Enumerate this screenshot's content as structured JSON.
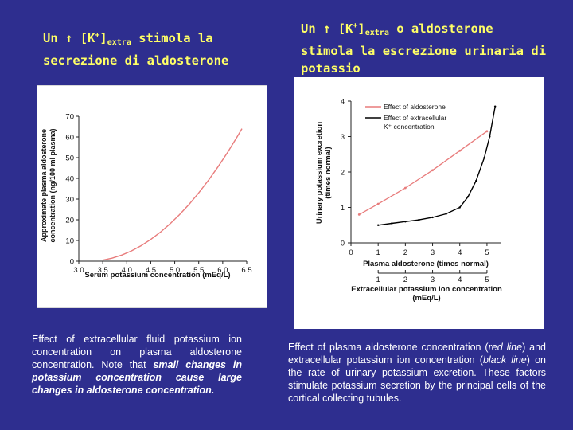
{
  "slide": {
    "left": {
      "title_line1": {
        "a": "Un",
        "arrow": "↑",
        "ion": "[K",
        "charge": "+",
        "close": "]",
        "sub": "extra",
        "verb": "stimola",
        "art": "la"
      },
      "title_line2": "secrezione di aldosterone",
      "caption": {
        "text1": "Effect of extracellular fluid potassium ion concentration on plasma aldosterone concentration. Note that ",
        "emph": "small changes in potassium concentration cause large changes in aldosterone concentration."
      }
    },
    "right": {
      "title_line1": {
        "a": "Un",
        "arrow": "↑",
        "ion": "[K",
        "charge": "+",
        "close": "]",
        "sub": "extra",
        "conj": "o",
        "noun": "aldosterone"
      },
      "title_line2": {
        "w1": "stimola",
        "w2": "la",
        "w3": "escrezione",
        "w4": "urinaria",
        "w5": "di"
      },
      "title_line3": "potassio",
      "caption": {
        "t1": "Effect of plasma aldosterone concentration (",
        "e1": "red line",
        "t2": ") and extracellular potassium ion concentration (",
        "e2": "black line",
        "t3": ") on the rate of urinary potassium excretion. These factors stimulate potassium secretion by the principal cells of the cortical collecting tubules."
      }
    }
  },
  "colors": {
    "background": "#2e2e8f",
    "title": "#ffff66",
    "caption": "#ffffff",
    "red_line": "#e87c7c",
    "black_line": "#000000"
  },
  "chart_data": [
    {
      "type": "line",
      "xlabel": "Serum potassium concentration (mEq/L)",
      "ylabel_line1": "Approximate plasma aldosterone",
      "ylabel_line2": "concentration (ng/100 ml plasma)",
      "xlim": [
        3.0,
        6.5
      ],
      "ylim": [
        0,
        70
      ],
      "xticks": [
        "3.0",
        "3.5",
        "4.0",
        "4.5",
        "5.0",
        "5.5",
        "6.0",
        "6.5"
      ],
      "yticks": [
        "0",
        "10",
        "20",
        "30",
        "40",
        "50",
        "60",
        "70"
      ],
      "series": [
        {
          "x": [
            3.5,
            3.7,
            3.9,
            4.1,
            4.3,
            4.5,
            4.7,
            4.9,
            5.1,
            5.3,
            5.5,
            5.7,
            5.9,
            6.1,
            6.3,
            6.4
          ],
          "y": [
            0.5,
            1.5,
            3,
            5,
            7.5,
            10.5,
            14,
            18,
            22.5,
            27.5,
            33,
            39,
            45.5,
            52.5,
            60,
            64
          ]
        }
      ]
    },
    {
      "type": "line",
      "ylabel_line1": "Urinary potassium excretion",
      "ylabel_line2": "(times normal)",
      "xlabel_top": "Plasma aldosterone (times normal)",
      "xlabel_bottom_line1": "Extracellular potassium ion concentration",
      "xlabel_bottom_line2": "(mEq/L)",
      "xlim": [
        0,
        5.5
      ],
      "ylim": [
        0,
        4
      ],
      "xticks_top": [
        "0",
        "1",
        "2",
        "3",
        "4",
        "5"
      ],
      "xticks_bottom": [
        "1",
        "2",
        "3",
        "4",
        "5"
      ],
      "yticks": [
        "0",
        "1",
        "2",
        "3",
        "4"
      ],
      "legend": {
        "red": "Effect of aldosterone",
        "black_line1": "Effect of extracellular",
        "black_line2": "K⁺ concentration"
      },
      "series": [
        {
          "name": "Effect of aldosterone",
          "x": [
            0.3,
            1,
            2,
            3,
            4,
            5
          ],
          "y": [
            0.8,
            1.1,
            1.55,
            2.05,
            2.6,
            3.15
          ]
        },
        {
          "name": "Effect of extracellular K⁺ concentration",
          "x": [
            1,
            1.5,
            2,
            2.5,
            3,
            3.5,
            4,
            4.3,
            4.6,
            4.9,
            5.1,
            5.3
          ],
          "y": [
            0.5,
            0.55,
            0.6,
            0.65,
            0.72,
            0.82,
            1.0,
            1.3,
            1.75,
            2.4,
            3.0,
            3.85
          ]
        }
      ]
    }
  ]
}
